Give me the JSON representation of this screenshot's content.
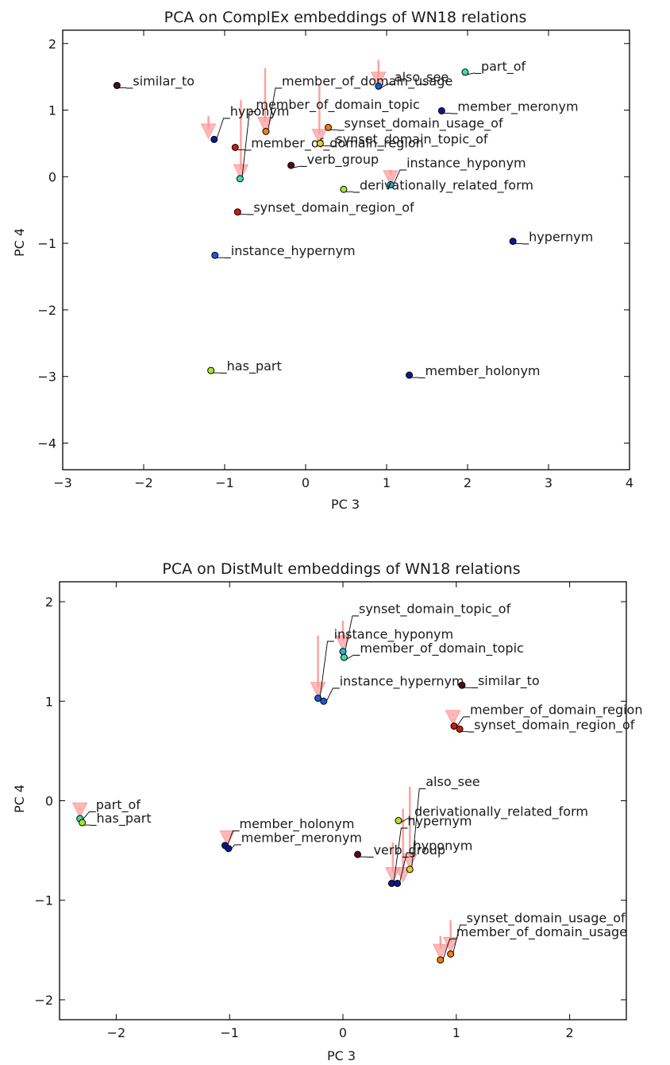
{
  "chart_data": [
    {
      "type": "scatter",
      "title": "PCA on ComplEx embeddings of WN18 relations",
      "xlabel": "PC 3",
      "ylabel": "PC 4",
      "xlim": [
        -3,
        4
      ],
      "ylim": [
        -4.4,
        2.2
      ],
      "xticks": [
        -3,
        -2,
        -1,
        0,
        1,
        2,
        3,
        4
      ],
      "yticks": [
        -4,
        -3,
        -2,
        -1,
        0,
        1,
        2
      ],
      "points": [
        {
          "label": "similar_to",
          "x": -2.33,
          "y": 1.37,
          "color": "#4a0f0f"
        },
        {
          "label": "hyponym",
          "x": -1.13,
          "y": 0.56,
          "color": "#0a1a8c"
        },
        {
          "label": "member_of_domain_region",
          "x": -0.87,
          "y": 0.44,
          "color": "#cc1a0a"
        },
        {
          "label": "member_of_domain_usage",
          "x": -0.49,
          "y": 0.68,
          "color": "#f07d0a"
        },
        {
          "label": "member_of_domain_topic",
          "x": -0.81,
          "y": -0.03,
          "color": "#3ee0a0"
        },
        {
          "label": "verb_group",
          "x": -0.18,
          "y": 0.17,
          "color": "#5a0a0a"
        },
        {
          "label": "also_see",
          "x": 0.9,
          "y": 1.36,
          "color": "#1a5ad9"
        },
        {
          "label": "synset_domain_usage_of",
          "x": 0.28,
          "y": 0.74,
          "color": "#f07d0a"
        },
        {
          "label": "synset_domain_topic_of",
          "x": 0.18,
          "y": 0.5,
          "color": "#e6d21a"
        },
        {
          "label": "part_of",
          "x": 1.97,
          "y": 1.57,
          "color": "#3ee0a0"
        },
        {
          "label": "instance_hyponym",
          "x": 1.05,
          "y": -0.12,
          "color": "#20b8d8"
        },
        {
          "label": "derivationally_related_form",
          "x": 0.47,
          "y": -0.19,
          "color": "#a8e62a"
        },
        {
          "label": "member_meronym",
          "x": 1.68,
          "y": 0.99,
          "color": "#0a1a8c"
        },
        {
          "label": "synset_domain_region_of",
          "x": -0.84,
          "y": -0.53,
          "color": "#cc1a0a"
        },
        {
          "label": "instance_hypernym",
          "x": -1.12,
          "y": -1.18,
          "color": "#1a5ad9"
        },
        {
          "label": "hypernym",
          "x": 2.56,
          "y": -0.97,
          "color": "#0a1a8c"
        },
        {
          "label": "has_part",
          "x": -1.17,
          "y": -2.91,
          "color": "#a8e62a"
        },
        {
          "label": "member_holonym",
          "x": 1.28,
          "y": -2.98,
          "color": "#0a1a8c"
        }
      ],
      "arrows": [
        {
          "from": [
            -1.2,
            0.91
          ],
          "to": [
            -1.2,
            0.6
          ]
        },
        {
          "from": [
            -0.8,
            1.15
          ],
          "to": [
            -0.8,
            -0.01
          ]
        },
        {
          "from": [
            -0.5,
            1.63
          ],
          "to": [
            -0.5,
            0.7
          ]
        },
        {
          "from": [
            0.17,
            1.39
          ],
          "to": [
            0.17,
            0.52
          ]
        },
        {
          "from": [
            0.9,
            1.75
          ],
          "to": [
            0.9,
            1.38
          ]
        },
        {
          "from": [
            1.05,
            0.1
          ],
          "to": [
            1.05,
            -0.1
          ]
        }
      ]
    },
    {
      "type": "scatter",
      "title": "PCA on DistMult embeddings of WN18 relations",
      "xlabel": "PC 3",
      "ylabel": "PC 4",
      "xlim": [
        -2.5,
        2.5
      ],
      "ylim": [
        -2.2,
        2.2
      ],
      "xticks": [
        -2,
        -1,
        0,
        1,
        2
      ],
      "yticks": [
        -2,
        -1,
        0,
        1,
        2
      ],
      "points": [
        {
          "label": "synset_domain_topic_of",
          "x": 0.0,
          "y": 1.5,
          "color": "#20b8d8"
        },
        {
          "label": "instance_hyponym",
          "x": -0.22,
          "y": 1.03,
          "color": "#1a5ad9"
        },
        {
          "label": "member_of_domain_topic",
          "x": 0.01,
          "y": 1.44,
          "color": "#3ee0a0"
        },
        {
          "label": "instance_hypernym",
          "x": -0.17,
          "y": 1.0,
          "color": "#1a5ad9"
        },
        {
          "label": "similar_to",
          "x": 1.05,
          "y": 1.16,
          "color": "#4a0f0f"
        },
        {
          "label": "member_of_domain_region",
          "x": 0.98,
          "y": 0.75,
          "color": "#cc1a0a"
        },
        {
          "label": "synset_domain_region_of",
          "x": 1.03,
          "y": 0.72,
          "color": "#cc1a0a"
        },
        {
          "label": "part_of",
          "x": -2.32,
          "y": -0.18,
          "color": "#3ee0a0"
        },
        {
          "label": "has_part",
          "x": -2.3,
          "y": -0.22,
          "color": "#a8e62a"
        },
        {
          "label": "also_see",
          "x": 0.59,
          "y": -0.69,
          "color": "#e6d21a"
        },
        {
          "label": "hypernym",
          "x": 0.43,
          "y": -0.83,
          "color": "#0a1a8c"
        },
        {
          "label": "derivationally_related_form",
          "x": 0.49,
          "y": -0.2,
          "color": "#a8e62a"
        },
        {
          "label": "hyponym",
          "x": 0.48,
          "y": -0.83,
          "color": "#0a1a8c"
        },
        {
          "label": "verb_group",
          "x": 0.13,
          "y": -0.54,
          "color": "#5a0a0a"
        },
        {
          "label": "member_holonym",
          "x": -1.04,
          "y": -0.45,
          "color": "#0a1a8c"
        },
        {
          "label": "member_meronym",
          "x": -1.01,
          "y": -0.48,
          "color": "#0a1a8c"
        },
        {
          "label": "synset_domain_usage_of",
          "x": 0.95,
          "y": -1.54,
          "color": "#f07d0a"
        },
        {
          "label": "member_of_domain_usage",
          "x": 0.86,
          "y": -1.6,
          "color": "#f07d0a"
        }
      ],
      "arrows": [
        {
          "from": [
            -0.22,
            1.66
          ],
          "to": [
            -0.22,
            1.06
          ]
        },
        {
          "from": [
            0.0,
            1.81
          ],
          "to": [
            0.0,
            1.53
          ]
        },
        {
          "from": [
            0.97,
            0.87
          ],
          "to": [
            0.97,
            0.78
          ]
        },
        {
          "from": [
            -2.32,
            -0.09
          ],
          "to": [
            -2.32,
            -0.15
          ]
        },
        {
          "from": [
            -1.02,
            -0.34
          ],
          "to": [
            -1.02,
            -0.43
          ]
        },
        {
          "from": [
            0.59,
            0.14
          ],
          "to": [
            0.59,
            -0.66
          ]
        },
        {
          "from": [
            0.53,
            -0.08
          ],
          "to": [
            0.53,
            -0.8
          ]
        },
        {
          "from": [
            0.44,
            -0.42
          ],
          "to": [
            0.44,
            -0.8
          ]
        },
        {
          "from": [
            0.95,
            -1.2
          ],
          "to": [
            0.95,
            -1.5
          ]
        },
        {
          "from": [
            0.86,
            -1.36
          ],
          "to": [
            0.86,
            -1.57
          ]
        }
      ]
    }
  ]
}
